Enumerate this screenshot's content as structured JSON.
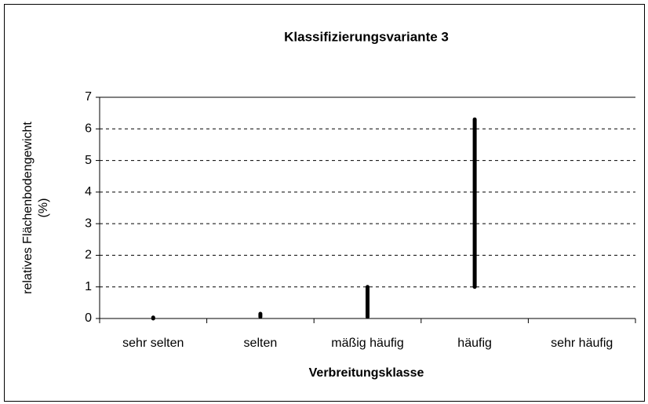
{
  "chart_data": {
    "type": "range",
    "title": "Klassifizierungsvariante 3",
    "xlabel": "Verbreitungsklasse",
    "ylabel": [
      "relatives Flächenbodengewicht",
      "(%)"
    ],
    "categories": [
      "sehr selten",
      "selten",
      "mäßig häufig",
      "häufig",
      "sehr häufig"
    ],
    "low": [
      0,
      0.05,
      0.05,
      1.0,
      null
    ],
    "high": [
      0.03,
      0.15,
      1.0,
      6.3,
      null
    ],
    "color": "#000000",
    "ylim": [
      0,
      7
    ],
    "yticks": [
      0,
      1,
      2,
      3,
      4,
      5,
      6,
      7
    ],
    "grid": true
  }
}
